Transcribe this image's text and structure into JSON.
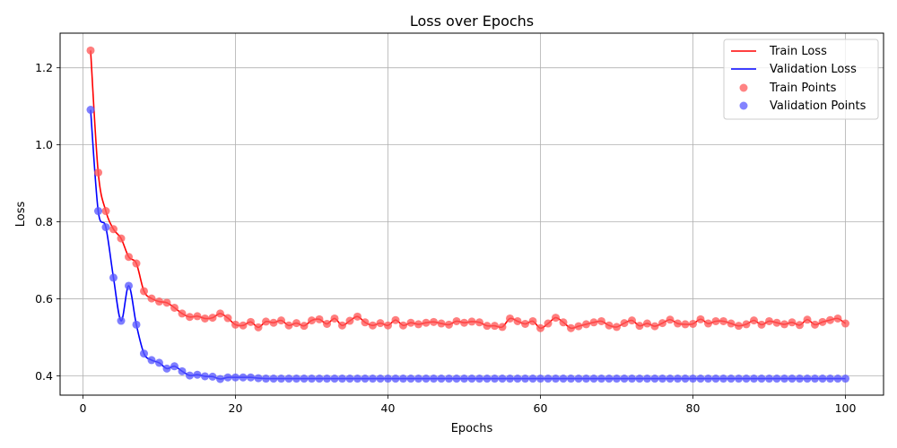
{
  "chart_data": {
    "type": "line",
    "title": "Loss over Epochs",
    "xlabel": "Epochs",
    "ylabel": "Loss",
    "xlim": [
      -3,
      105
    ],
    "ylim": [
      0.35,
      1.29
    ],
    "xticks": [
      0,
      20,
      40,
      60,
      80,
      100
    ],
    "yticks": [
      0.4,
      0.6,
      0.8,
      1.0,
      1.2
    ],
    "xtick_labels": [
      "0",
      "20",
      "40",
      "60",
      "80",
      "100"
    ],
    "ytick_labels": [
      "0.4",
      "0.6",
      "0.8",
      "1.0",
      "1.2"
    ],
    "grid": true,
    "legend_position": "top-right",
    "x": [
      1,
      2,
      3,
      4,
      5,
      6,
      7,
      8,
      9,
      10,
      11,
      12,
      13,
      14,
      15,
      16,
      17,
      18,
      19,
      20,
      21,
      22,
      23,
      24,
      25,
      26,
      27,
      28,
      29,
      30,
      31,
      32,
      33,
      34,
      35,
      36,
      37,
      38,
      39,
      40,
      41,
      42,
      43,
      44,
      45,
      46,
      47,
      48,
      49,
      50,
      51,
      52,
      53,
      54,
      55,
      56,
      57,
      58,
      59,
      60,
      61,
      62,
      63,
      64,
      65,
      66,
      67,
      68,
      69,
      70,
      71,
      72,
      73,
      74,
      75,
      76,
      77,
      78,
      79,
      80,
      81,
      82,
      83,
      84,
      85,
      86,
      87,
      88,
      89,
      90,
      91,
      92,
      93,
      94,
      95,
      96,
      97,
      98,
      99,
      100
    ],
    "series": [
      {
        "name": "Train Loss",
        "points_name": "Train Points",
        "color": "#ff0000",
        "point_color": "#ff5a5a",
        "values": [
          1.245,
          0.928,
          0.828,
          0.781,
          0.757,
          0.709,
          0.692,
          0.62,
          0.601,
          0.593,
          0.59,
          0.577,
          0.562,
          0.553,
          0.555,
          0.549,
          0.551,
          0.562,
          0.55,
          0.533,
          0.531,
          0.54,
          0.526,
          0.541,
          0.538,
          0.544,
          0.531,
          0.537,
          0.53,
          0.544,
          0.547,
          0.535,
          0.549,
          0.531,
          0.543,
          0.554,
          0.539,
          0.531,
          0.537,
          0.531,
          0.545,
          0.531,
          0.538,
          0.534,
          0.538,
          0.54,
          0.536,
          0.533,
          0.542,
          0.538,
          0.541,
          0.539,
          0.53,
          0.53,
          0.527,
          0.549,
          0.542,
          0.535,
          0.542,
          0.524,
          0.536,
          0.551,
          0.539,
          0.524,
          0.529,
          0.534,
          0.539,
          0.542,
          0.531,
          0.527,
          0.537,
          0.544,
          0.53,
          0.536,
          0.529,
          0.537,
          0.546,
          0.536,
          0.534,
          0.535,
          0.547,
          0.536,
          0.542,
          0.542,
          0.536,
          0.53,
          0.534,
          0.544,
          0.533,
          0.542,
          0.538,
          0.534,
          0.539,
          0.532,
          0.546,
          0.533,
          0.54,
          0.545,
          0.549,
          0.536
        ]
      },
      {
        "name": "Validation Loss",
        "points_name": "Validation Points",
        "color": "#0000ff",
        "point_color": "#5a5aff",
        "values": [
          1.091,
          0.828,
          0.786,
          0.655,
          0.543,
          0.634,
          0.533,
          0.458,
          0.441,
          0.434,
          0.419,
          0.425,
          0.412,
          0.401,
          0.403,
          0.399,
          0.398,
          0.392,
          0.396,
          0.396,
          0.396,
          0.396,
          0.394,
          0.393,
          0.393,
          0.393,
          0.393,
          0.393,
          0.393,
          0.393,
          0.393,
          0.393,
          0.393,
          0.393,
          0.393,
          0.393,
          0.393,
          0.393,
          0.393,
          0.393,
          0.393,
          0.393,
          0.393,
          0.393,
          0.393,
          0.393,
          0.393,
          0.393,
          0.393,
          0.393,
          0.393,
          0.393,
          0.393,
          0.393,
          0.393,
          0.393,
          0.393,
          0.393,
          0.393,
          0.393,
          0.393,
          0.393,
          0.393,
          0.393,
          0.393,
          0.393,
          0.393,
          0.393,
          0.393,
          0.393,
          0.393,
          0.393,
          0.393,
          0.393,
          0.393,
          0.393,
          0.393,
          0.393,
          0.393,
          0.393,
          0.393,
          0.393,
          0.393,
          0.393,
          0.393,
          0.393,
          0.393,
          0.393,
          0.393,
          0.393,
          0.393,
          0.393,
          0.393,
          0.393,
          0.393,
          0.393,
          0.393,
          0.393,
          0.393,
          0.393
        ]
      }
    ]
  }
}
